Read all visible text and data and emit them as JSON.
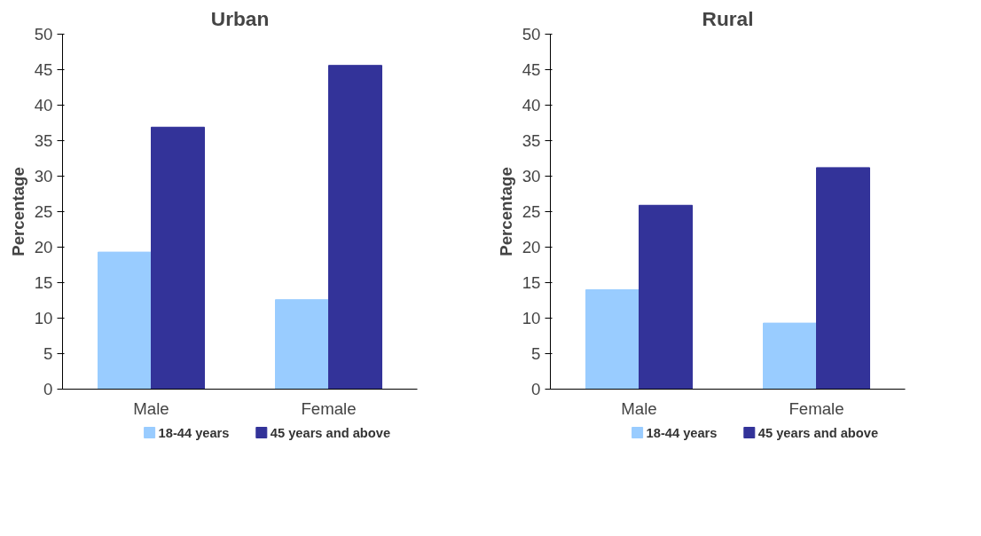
{
  "chart_data": [
    {
      "type": "bar",
      "title": "Urban",
      "ylabel": "Percentage",
      "categories": [
        "Male",
        "Female"
      ],
      "ylim": [
        0,
        50
      ],
      "yticks": [
        0,
        5,
        10,
        15,
        20,
        25,
        30,
        35,
        40,
        45,
        50
      ],
      "grid": false,
      "legend": "bottom",
      "series": [
        {
          "name": "18-44 years",
          "color": "#99ccff",
          "values": [
            19.3,
            12.6
          ]
        },
        {
          "name": "45 years and above",
          "color": "#333399",
          "values": [
            36.9,
            45.6
          ]
        }
      ]
    },
    {
      "type": "bar",
      "title": "Rural",
      "ylabel": "Percentage",
      "categories": [
        "Male",
        "Female"
      ],
      "ylim": [
        0,
        50
      ],
      "yticks": [
        0,
        5,
        10,
        15,
        20,
        25,
        30,
        35,
        40,
        45,
        50
      ],
      "grid": false,
      "legend": "bottom",
      "series": [
        {
          "name": "18-44 years",
          "color": "#99ccff",
          "values": [
            14.0,
            9.3
          ]
        },
        {
          "name": "45 years and above",
          "color": "#333399",
          "values": [
            25.9,
            31.2
          ]
        }
      ]
    }
  ]
}
